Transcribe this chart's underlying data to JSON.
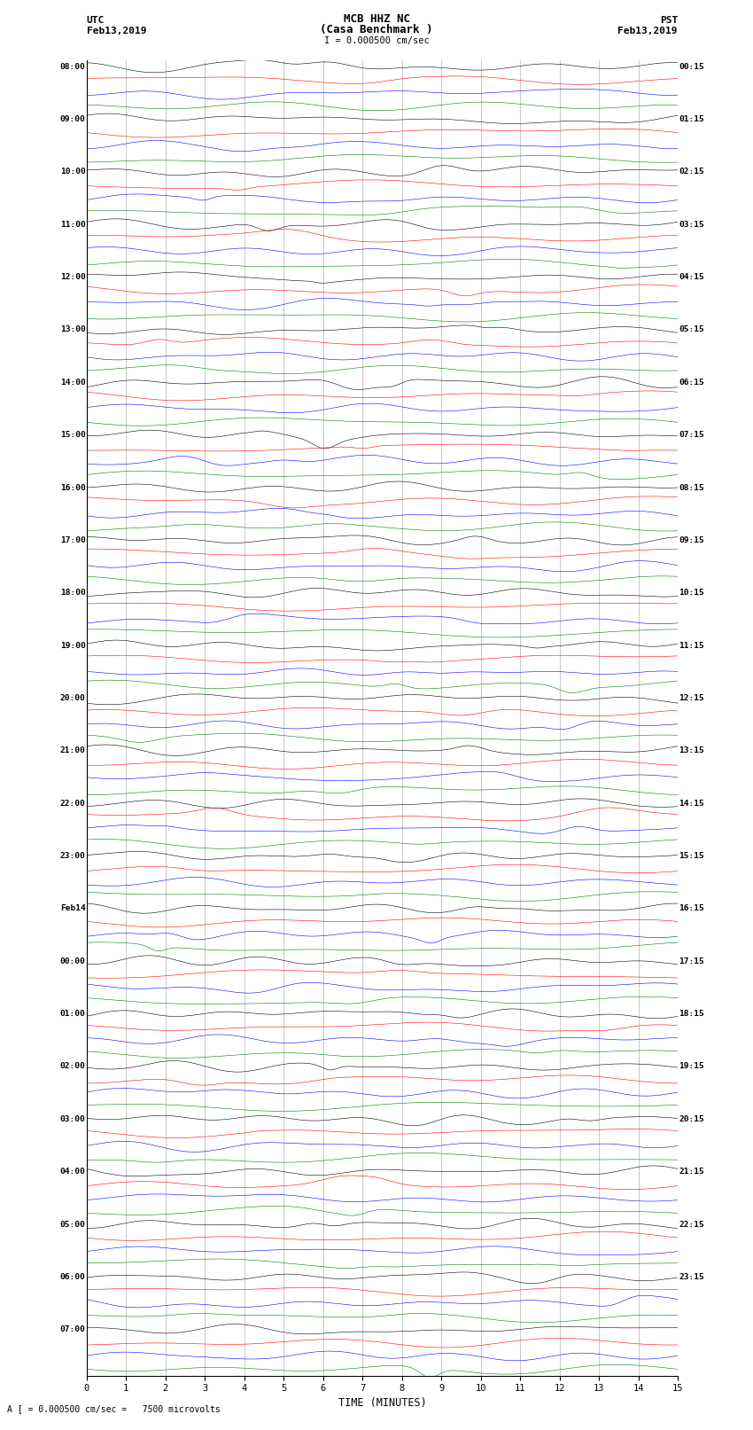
{
  "title_line1": "MCB HHZ NC",
  "title_line2": "(Casa Benchmark )",
  "title_line3": "I = 0.000500 cm/sec",
  "left_label_line1": "UTC",
  "left_label_line2": "Feb13,2019",
  "right_label_line1": "PST",
  "right_label_line2": "Feb13,2019",
  "bottom_note": "A [ = 0.000500 cm/sec =   7500 microvolts",
  "xlabel": "TIME (MINUTES)",
  "xlim": [
    0,
    15
  ],
  "xticks": [
    0,
    1,
    2,
    3,
    4,
    5,
    6,
    7,
    8,
    9,
    10,
    11,
    12,
    13,
    14,
    15
  ],
  "colors": [
    "black",
    "red",
    "blue",
    "green"
  ],
  "background_color": "white",
  "fig_width": 8.5,
  "fig_height": 16.13,
  "dpi": 100,
  "left_labels": [
    "08:00",
    "",
    "",
    "",
    "09:00",
    "",
    "",
    "",
    "10:00",
    "",
    "",
    "",
    "11:00",
    "",
    "",
    "",
    "12:00",
    "",
    "",
    "",
    "13:00",
    "",
    "",
    "",
    "14:00",
    "",
    "",
    "",
    "15:00",
    "",
    "",
    "",
    "16:00",
    "",
    "",
    "",
    "17:00",
    "",
    "",
    "",
    "18:00",
    "",
    "",
    "",
    "19:00",
    "",
    "",
    "",
    "20:00",
    "",
    "",
    "",
    "21:00",
    "",
    "",
    "",
    "22:00",
    "",
    "",
    "",
    "23:00",
    "",
    "",
    "",
    "Feb14",
    "",
    "",
    "",
    "00:00",
    "",
    "",
    "",
    "01:00",
    "",
    "",
    "",
    "02:00",
    "",
    "",
    "",
    "03:00",
    "",
    "",
    "",
    "04:00",
    "",
    "",
    "",
    "05:00",
    "",
    "",
    "",
    "06:00",
    "",
    "",
    "",
    "07:00",
    "",
    "",
    ""
  ],
  "right_labels": [
    "00:15",
    "",
    "",
    "",
    "01:15",
    "",
    "",
    "",
    "02:15",
    "",
    "",
    "",
    "03:15",
    "",
    "",
    "",
    "04:15",
    "",
    "",
    "",
    "05:15",
    "",
    "",
    "",
    "06:15",
    "",
    "",
    "",
    "07:15",
    "",
    "",
    "",
    "08:15",
    "",
    "",
    "",
    "09:15",
    "",
    "",
    "",
    "10:15",
    "",
    "",
    "",
    "11:15",
    "",
    "",
    "",
    "12:15",
    "",
    "",
    "",
    "13:15",
    "",
    "",
    "",
    "14:15",
    "",
    "",
    "",
    "15:15",
    "",
    "",
    "",
    "16:15",
    "",
    "",
    "",
    "17:15",
    "",
    "",
    "",
    "18:15",
    "",
    "",
    "",
    "19:15",
    "",
    "",
    "",
    "20:15",
    "",
    "",
    "",
    "21:15",
    "",
    "",
    "",
    "22:15",
    "",
    "",
    "",
    "23:15",
    "",
    "",
    "",
    "",
    "",
    "",
    ""
  ]
}
